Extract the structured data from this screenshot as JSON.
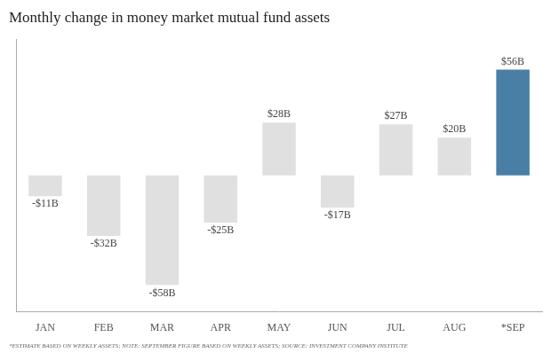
{
  "chart_data": {
    "type": "bar",
    "title": "Monthly change in money market mutual fund assets",
    "categories": [
      "JAN",
      "FEB",
      "MAR",
      "APR",
      "MAY",
      "JUN",
      "JUL",
      "AUG",
      "*SEP"
    ],
    "values": [
      -11,
      -32,
      -58,
      -25,
      28,
      -17,
      27,
      20,
      56
    ],
    "value_labels": [
      "-$11B",
      "-$32B",
      "-$58B",
      "-$25B",
      "$28B",
      "-$17B",
      "$27B",
      "$20B",
      "$56B"
    ],
    "colors": [
      "#e0e0e0",
      "#e0e0e0",
      "#e0e0e0",
      "#e0e0e0",
      "#e0e0e0",
      "#e0e0e0",
      "#e0e0e0",
      "#e0e0e0",
      "#4a7fa5"
    ],
    "annotations": [
      "*ESTIMATE BASED ON WEEKLY ASSETS; NOTE: SEPTEMBER FIGURE BASED ON WEEKLY ASSETS; SOURCE: INVESTMENT COMPANY INSTITUTE"
    ],
    "ylim": [
      -72,
      72
    ],
    "grid": false,
    "legend": false,
    "data_labels": true,
    "tick_labels": "x"
  }
}
